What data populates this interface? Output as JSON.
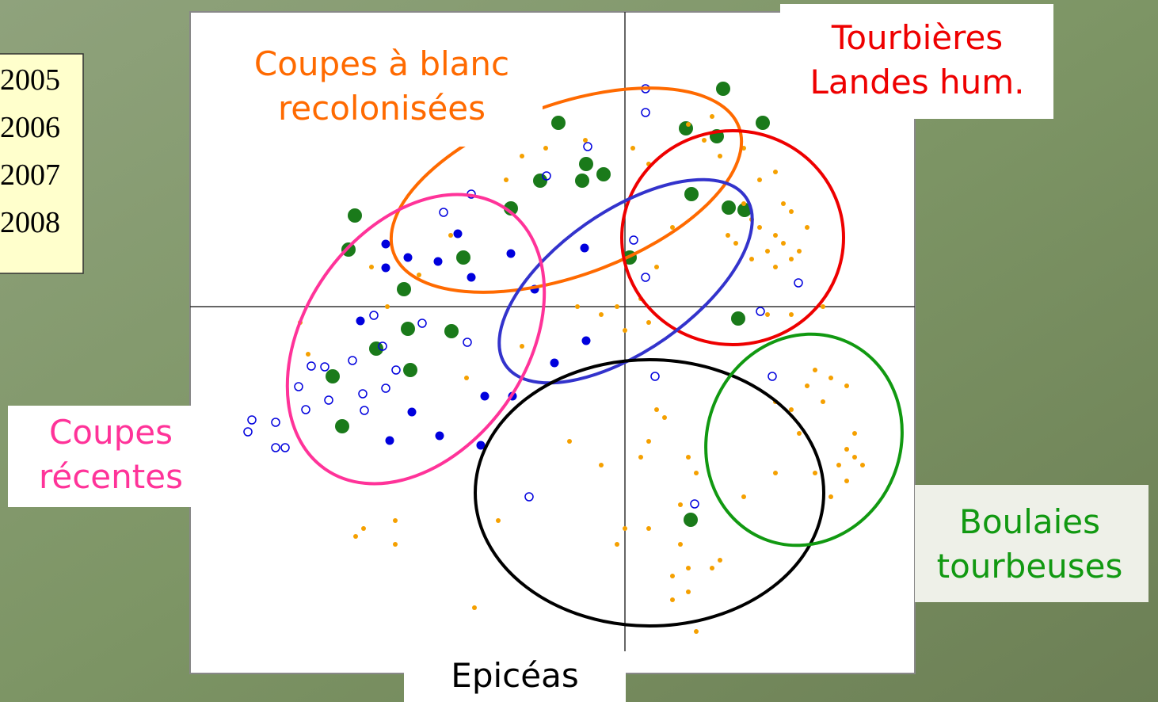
{
  "chart_data": {
    "type": "scatter",
    "xlim": [
      -5.49,
      3.66
    ],
    "ylim": [
      -4.63,
      3.72
    ],
    "series": [
      {
        "name": "2005",
        "color": "#1a7a1a",
        "filled": true,
        "x": [
          1.24,
          1.74,
          -0.84,
          0.77,
          1.16,
          -0.49,
          -0.27,
          -1.07,
          -0.54,
          0.84,
          -1.44,
          1.31,
          1.51,
          -3.41,
          -3.49,
          -2.04,
          0.06,
          -2.79,
          1.43,
          -2.74,
          -2.19,
          -3.14,
          -3.69,
          -2.71,
          -3.57,
          0.83
        ],
        "values": [
          2.75,
          2.32,
          2.32,
          2.25,
          2.15,
          1.8,
          1.67,
          1.59,
          1.59,
          1.42,
          1.24,
          1.25,
          1.22,
          1.15,
          0.72,
          0.62,
          0.62,
          0.22,
          -0.15,
          -0.28,
          -0.31,
          -0.53,
          -0.88,
          -0.8,
          -1.51,
          -2.69
        ]
      },
      {
        "name": "2006",
        "color": "#0000dd",
        "filled": true,
        "x": [
          -2.11,
          -3.02,
          -2.74,
          -2.36,
          -1.44,
          -0.51,
          -3.02,
          -1.94,
          -1.14,
          -3.34,
          -0.49,
          -0.89,
          -1.77,
          -1.42,
          -2.69,
          -2.34,
          -2.97,
          -1.82
        ],
        "values": [
          0.92,
          0.79,
          0.62,
          0.57,
          0.67,
          0.74,
          0.49,
          0.37,
          0.22,
          -0.18,
          -0.43,
          -0.71,
          -1.13,
          -1.13,
          -1.33,
          -1.63,
          -1.69,
          -1.75
        ]
      },
      {
        "name": "2007",
        "color": "#0000dd",
        "filled": false,
        "x": [
          0.26,
          0.26,
          -0.47,
          -0.99,
          -1.94,
          -2.29,
          0.11,
          0.26,
          1.71,
          2.19,
          -3.17,
          -2.56,
          -1.99,
          -3.06,
          -3.44,
          -3.96,
          -3.79,
          -2.89,
          -4.12,
          -3.02,
          -3.31,
          -3.74,
          -4.03,
          -3.29,
          -4.71,
          -4.41,
          -4.76,
          -4.41,
          -4.29,
          0.38,
          1.86,
          -1.21,
          0.88
        ],
        "values": [
          2.75,
          2.45,
          2.02,
          1.65,
          1.42,
          1.19,
          0.84,
          0.37,
          -0.06,
          0.3,
          -0.11,
          -0.21,
          -0.45,
          -0.5,
          -0.68,
          -0.75,
          -0.76,
          -0.8,
          -1.01,
          -1.03,
          -1.1,
          -1.18,
          -1.3,
          -1.31,
          -1.43,
          -1.46,
          -1.58,
          -1.78,
          -1.78,
          -0.88,
          -0.88,
          -2.4,
          -2.49
        ]
      },
      {
        "name": "2008",
        "color": "#f5a000",
        "filled": true,
        "x": [
          1.5,
          1.6,
          1.7,
          1.9,
          2.0,
          1.8,
          2.1,
          2.2,
          1.9,
          1.6,
          1.4,
          1.3,
          2.3,
          2.1,
          2.0,
          1.7,
          1.9,
          1.5,
          1.2,
          1.0,
          0.8,
          1.1,
          0.6,
          0.4,
          0.2,
          -0.1,
          0.3,
          0.0,
          -0.3,
          -0.6,
          2.5,
          1.8,
          2.1,
          2.4,
          2.6,
          2.3,
          2.5,
          2.1,
          2.8,
          2.9,
          2.8,
          2.9,
          2.7,
          2.8,
          3.0,
          2.6,
          2.4,
          2.2,
          1.9,
          1.5,
          1.9,
          0.4,
          0.5,
          0.3,
          0.2,
          0.8,
          0.9,
          0.7,
          0.3,
          0.0,
          -0.1,
          0.7,
          0.8,
          0.6,
          0.6,
          1.2,
          1.1,
          0.8,
          0.9,
          -1.6,
          -1.9,
          -2.9,
          -3.3,
          -3.4,
          -2.9,
          -0.7,
          -0.3,
          -1.5,
          -1.3,
          -1.0,
          -0.5,
          0.1,
          0.3,
          -2.2,
          -2.6,
          -3.2,
          -4.1,
          -4.0,
          -3.0,
          -2.0,
          -1.3
        ],
        "values": [
          1.3,
          1.1,
          1.0,
          0.9,
          0.8,
          0.7,
          0.6,
          0.7,
          0.5,
          0.6,
          0.8,
          0.9,
          1.0,
          1.2,
          1.3,
          1.6,
          1.7,
          2.0,
          1.9,
          2.1,
          2.3,
          2.4,
          1.0,
          0.5,
          0.1,
          0.0,
          -0.2,
          -0.3,
          -0.1,
          0.0,
          0.0,
          -0.1,
          -0.1,
          -0.8,
          -0.9,
          -1.0,
          -1.2,
          -1.3,
          -1.0,
          -1.6,
          -1.8,
          -1.9,
          -2.0,
          -2.2,
          -2.0,
          -2.4,
          -2.1,
          -1.6,
          -2.1,
          -2.4,
          -1.2,
          -1.3,
          -1.4,
          -1.7,
          -1.9,
          -1.9,
          -2.1,
          -2.5,
          -2.8,
          -2.8,
          -3.0,
          -3.0,
          -3.3,
          -3.4,
          -3.7,
          -3.2,
          -3.3,
          -3.6,
          -4.1,
          -2.7,
          -3.8,
          -2.7,
          -2.8,
          -2.9,
          -3.0,
          -1.7,
          -2.0,
          1.6,
          1.9,
          2.0,
          2.1,
          2.0,
          1.8,
          0.9,
          0.4,
          0.5,
          -0.2,
          -0.6,
          0.0,
          -0.9,
          -0.5
        ]
      }
    ],
    "groups": [
      {
        "label": [
          "Coupes à blanc",
          "recolonisées"
        ],
        "color": "#ff6a00"
      },
      {
        "label": [
          "Tourbières",
          "Landes hum."
        ],
        "color": "#ee0000"
      },
      {
        "color": "#3333cc"
      },
      {
        "label": [
          "Coupes",
          "récentes"
        ],
        "color": "#ff3399"
      },
      {
        "label": [
          "Epicéas"
        ],
        "color": "#000000"
      },
      {
        "label": [
          "Boulaies",
          "tourbeuses"
        ],
        "color": "#119911"
      }
    ]
  }
}
